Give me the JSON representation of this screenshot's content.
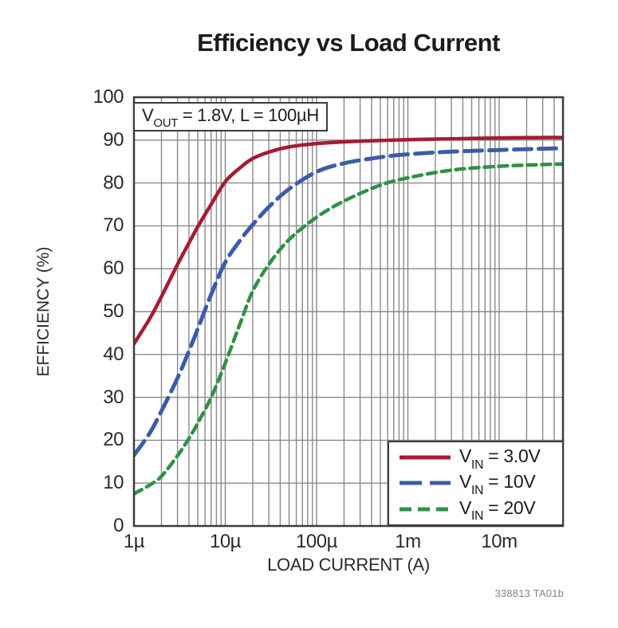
{
  "chart_data": {
    "type": "line",
    "title": "Efficiency vs Load Current",
    "xlabel": "LOAD CURRENT (A)",
    "ylabel": "EFFICIENCY (%)",
    "xscale": "log",
    "xlim": [
      1e-06,
      0.05
    ],
    "ylim": [
      0,
      100
    ],
    "grid": {
      "color": "#8a8a8a",
      "frame_color": "#3b3b3b",
      "background": "#ffffff"
    },
    "x_ticks": [
      {
        "value": 1e-06,
        "label": "1µ"
      },
      {
        "value": 1e-05,
        "label": "10µ"
      },
      {
        "value": 0.0001,
        "label": "100µ"
      },
      {
        "value": 0.001,
        "label": "1m"
      },
      {
        "value": 0.01,
        "label": "10m"
      }
    ],
    "y_ticks": [
      {
        "value": 0,
        "label": "0"
      },
      {
        "value": 10,
        "label": "10"
      },
      {
        "value": 20,
        "label": "20"
      },
      {
        "value": 30,
        "label": "30"
      },
      {
        "value": 40,
        "label": "40"
      },
      {
        "value": 50,
        "label": "50"
      },
      {
        "value": 60,
        "label": "60"
      },
      {
        "value": 70,
        "label": "70"
      },
      {
        "value": 80,
        "label": "80"
      },
      {
        "value": 90,
        "label": "90"
      },
      {
        "value": 100,
        "label": "100"
      }
    ],
    "annotation": {
      "prefix": "V",
      "sub": "OUT",
      "rest": " = 1.8V, L = 100µH"
    },
    "legend_position": "bottom-right",
    "series": [
      {
        "name": "VIN = 3.0V",
        "legend": {
          "prefix": "V",
          "sub": "IN",
          "rest": " = 3.0V"
        },
        "color": "#a61c33",
        "dash": null,
        "swatch_dash": null,
        "stroke_width": 4.5,
        "points": [
          [
            1e-06,
            42.5
          ],
          [
            1.5e-06,
            48.5
          ],
          [
            2e-06,
            53.5
          ],
          [
            3e-06,
            61
          ],
          [
            4e-06,
            66
          ],
          [
            5e-06,
            69.8
          ],
          [
            7e-06,
            75
          ],
          [
            1e-05,
            80.3
          ],
          [
            1.5e-05,
            83.8
          ],
          [
            2e-05,
            85.7
          ],
          [
            3e-05,
            87.2
          ],
          [
            5e-05,
            88.4
          ],
          [
            0.0001,
            89.2
          ],
          [
            0.0002,
            89.6
          ],
          [
            0.0005,
            89.9
          ],
          [
            0.001,
            90.1
          ],
          [
            0.003,
            90.3
          ],
          [
            0.01,
            90.5
          ],
          [
            0.03,
            90.6
          ],
          [
            0.05,
            90.6
          ]
        ]
      },
      {
        "name": "VIN = 10V",
        "legend": {
          "prefix": "V",
          "sub": "IN",
          "rest": " = 10V"
        },
        "color": "#3b5ca9",
        "dash": "22 9",
        "swatch_dash": "28 10",
        "stroke_width": 5,
        "points": [
          [
            1e-06,
            16.5
          ],
          [
            1.5e-06,
            21.8
          ],
          [
            2e-06,
            26.8
          ],
          [
            3e-06,
            34.5
          ],
          [
            4e-06,
            40.8
          ],
          [
            5e-06,
            46
          ],
          [
            7e-06,
            54
          ],
          [
            1e-05,
            61.5
          ],
          [
            1.5e-05,
            67
          ],
          [
            2e-05,
            70.3
          ],
          [
            3e-05,
            74.4
          ],
          [
            5e-05,
            78.6
          ],
          [
            0.0001,
            82.6
          ],
          [
            0.0002,
            84.6
          ],
          [
            0.0005,
            86
          ],
          [
            0.001,
            86.7
          ],
          [
            0.003,
            87.3
          ],
          [
            0.01,
            87.7
          ],
          [
            0.03,
            88
          ],
          [
            0.05,
            88.1
          ]
        ]
      },
      {
        "name": "VIN = 20V",
        "legend": {
          "prefix": "V",
          "sub": "IN",
          "rest": " = 20V"
        },
        "color": "#2f9147",
        "dash": "11 7",
        "swatch_dash": "15 8",
        "stroke_width": 4.5,
        "points": [
          [
            1e-06,
            7.5
          ],
          [
            1.5e-06,
            9.6
          ],
          [
            2e-06,
            11.6
          ],
          [
            3e-06,
            16.4
          ],
          [
            4e-06,
            20.4
          ],
          [
            5e-06,
            24
          ],
          [
            7e-06,
            30
          ],
          [
            1e-05,
            38
          ],
          [
            1.5e-05,
            48
          ],
          [
            2e-05,
            54.8
          ],
          [
            3e-05,
            61
          ],
          [
            5e-05,
            66.8
          ],
          [
            0.0001,
            72
          ],
          [
            0.0002,
            75.8
          ],
          [
            0.0005,
            79.5
          ],
          [
            0.001,
            81.2
          ],
          [
            0.003,
            83
          ],
          [
            0.01,
            83.9
          ],
          [
            0.03,
            84.3
          ],
          [
            0.05,
            84.4
          ]
        ]
      }
    ]
  },
  "footer": {
    "code": "338813 TA01b"
  }
}
